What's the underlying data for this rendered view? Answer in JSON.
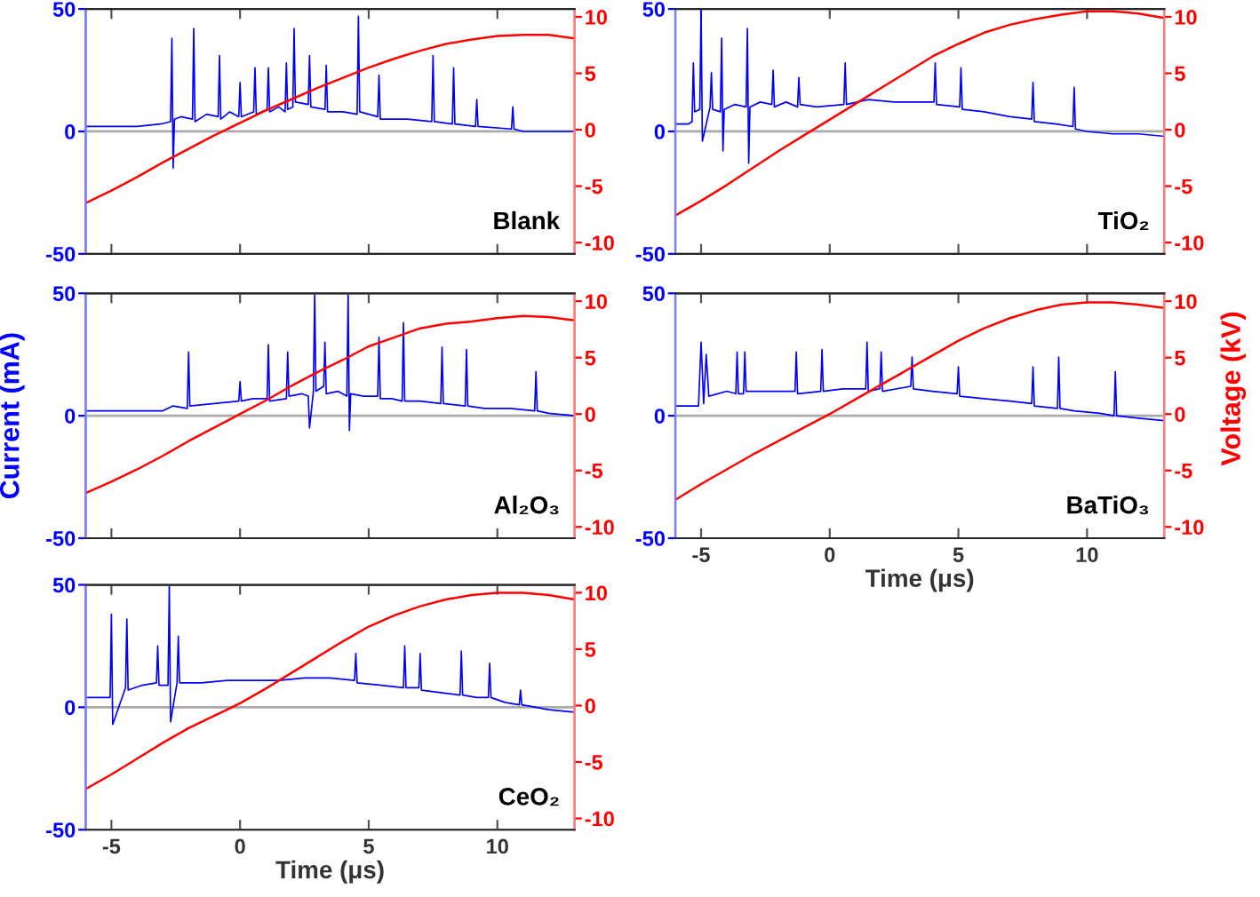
{
  "chart_data": [
    {
      "type": "line",
      "ylim": [
        -50,
        50
      ],
      "yticks": [
        -50,
        0,
        50
      ],
      "y2lim": [
        -11,
        10.7
      ],
      "y2ticks": [
        -10,
        -5,
        0,
        5,
        10
      ],
      "xlim": [
        -6,
        13
      ],
      "xticks": [
        -5,
        0,
        5,
        10
      ],
      "tick_labels": "y",
      "grid": false,
      "annotations": [
        "Blank"
      ],
      "ref_lines": [
        {
          "axis": "y",
          "value": 0,
          "color": "#aaaaaa"
        }
      ],
      "series": [
        {
          "color": "#0000ff",
          "x": [
            -6,
            -5,
            -4,
            -3.1,
            -2.7,
            -2.65,
            -2.6,
            -2.55,
            -2.3,
            -1.85,
            -1.8,
            -1.75,
            -1.3,
            -0.85,
            -0.8,
            -0.75,
            -0.4,
            -0.05,
            0,
            0.05,
            0.53,
            0.58,
            0.63,
            1.05,
            1.1,
            1.15,
            1.5,
            1.75,
            1.8,
            1.85,
            2.05,
            2.1,
            2.15,
            2.65,
            2.7,
            2.75,
            3.3,
            3.35,
            3.4,
            4,
            4.55,
            4.6,
            4.65,
            5.35,
            5.4,
            5.45,
            6.5,
            7.45,
            7.5,
            7.55,
            8.25,
            8.3,
            8.35,
            9.15,
            9.2,
            9.25,
            10.55,
            10.6,
            10.65,
            11,
            12,
            13
          ],
          "values": [
            2,
            2,
            2,
            3,
            4,
            38,
            -15,
            5,
            6,
            5,
            42,
            4,
            7,
            6,
            31,
            5,
            8,
            6,
            20,
            6,
            8,
            26,
            7,
            9,
            26,
            8,
            10,
            8,
            28,
            9,
            10,
            42,
            12,
            11,
            31,
            10,
            9,
            27,
            8,
            8,
            7,
            47,
            8,
            6,
            23,
            5,
            5,
            4,
            31,
            4,
            3,
            26,
            3,
            2,
            13,
            2,
            1,
            10,
            1,
            0,
            0,
            0
          ]
        },
        {
          "color": "#ff0000",
          "axis": "y2",
          "x": [
            -6,
            -5,
            -4,
            -3,
            -2,
            -1,
            0,
            1,
            2,
            3,
            4,
            5,
            6,
            7,
            8,
            9,
            10,
            11,
            12,
            13
          ],
          "values": [
            -6.5,
            -5.4,
            -4.2,
            -2.9,
            -1.7,
            -0.5,
            0.6,
            1.7,
            2.7,
            3.7,
            4.6,
            5.5,
            6.3,
            7.0,
            7.6,
            8.0,
            8.3,
            8.4,
            8.4,
            8.1
          ]
        }
      ]
    },
    {
      "type": "line",
      "ylim": [
        -50,
        50
      ],
      "yticks": [
        -50,
        0,
        50
      ],
      "y2lim": [
        -11,
        10.7
      ],
      "y2ticks": [
        -10,
        -5,
        0,
        5,
        10
      ],
      "xlim": [
        -6,
        13
      ],
      "xticks": [
        -5,
        0,
        5,
        10
      ],
      "tick_labels": "y",
      "grid": false,
      "annotations": [
        "TiO₂"
      ],
      "y2label": "Voltage (kV)",
      "ref_lines": [
        {
          "axis": "y",
          "value": 0,
          "color": "#aaaaaa"
        }
      ],
      "series": [
        {
          "color": "#0000ff",
          "x": [
            -6,
            -5.5,
            -5.35,
            -5.3,
            -5.25,
            -5.05,
            -5,
            -4.95,
            -4.65,
            -4.6,
            -4.55,
            -4.25,
            -4.2,
            -4.15,
            -4.1,
            -3.7,
            -3.25,
            -3.2,
            -3.15,
            -3.1,
            -2.7,
            -2.25,
            -2.2,
            -2.15,
            -1.7,
            -1.25,
            -1.2,
            -1.15,
            -0.5,
            0.55,
            0.6,
            0.65,
            1.5,
            2.5,
            3.5,
            4.05,
            4.1,
            4.15,
            5.05,
            5.1,
            5.15,
            6,
            7,
            7.85,
            7.9,
            7.95,
            8.8,
            9.45,
            9.5,
            9.55,
            10,
            11,
            12,
            13
          ],
          "values": [
            3,
            3,
            4,
            28,
            8,
            9,
            50,
            -4,
            10,
            24,
            9,
            8,
            38,
            -8,
            9,
            11,
            10,
            42,
            -13,
            10,
            12,
            11,
            25,
            10,
            12,
            10,
            22,
            11,
            10,
            11,
            28,
            11,
            13,
            12,
            12,
            12,
            28,
            11,
            10,
            26,
            9,
            8,
            6,
            5,
            20,
            4,
            3,
            2,
            18,
            1,
            0,
            -1,
            -1,
            -2
          ]
        },
        {
          "color": "#ff0000",
          "axis": "y2",
          "x": [
            -6,
            -5,
            -4,
            -3,
            -2,
            -1,
            0,
            1,
            2,
            3,
            4,
            5,
            6,
            7,
            8,
            9,
            10,
            11,
            12,
            13
          ],
          "values": [
            -7.6,
            -6.3,
            -4.9,
            -3.4,
            -1.9,
            -0.5,
            0.9,
            2.3,
            3.7,
            5.1,
            6.5,
            7.6,
            8.6,
            9.3,
            9.8,
            10.2,
            10.5,
            10.5,
            10.3,
            9.9
          ]
        }
      ]
    },
    {
      "type": "line",
      "ylim": [
        -50,
        50
      ],
      "yticks": [
        -50,
        0,
        50
      ],
      "y2lim": [
        -11,
        10.7
      ],
      "y2ticks": [
        -10,
        -5,
        0,
        5,
        10
      ],
      "xlim": [
        -6,
        13
      ],
      "xticks": [
        -5,
        0,
        5,
        10
      ],
      "tick_labels": "y",
      "grid": false,
      "annotations": [
        "Al₂O₃"
      ],
      "ylabel": "Current (mA)",
      "ref_lines": [
        {
          "axis": "y",
          "value": 0,
          "color": "#aaaaaa"
        }
      ],
      "series": [
        {
          "color": "#0000ff",
          "x": [
            -6,
            -4,
            -3,
            -2.6,
            -2.05,
            -2,
            -1.95,
            -1,
            -0.05,
            0,
            0.05,
            0.5,
            1.05,
            1.1,
            1.15,
            1.8,
            1.85,
            1.9,
            2.4,
            2.65,
            2.7,
            2.85,
            2.9,
            2.95,
            3.25,
            3.3,
            3.35,
            3.8,
            4.15,
            4.2,
            4.25,
            4.3,
            4.8,
            5.35,
            5.4,
            5.45,
            5.9,
            6.3,
            6.35,
            6.4,
            7,
            7.8,
            7.85,
            7.9,
            8.75,
            8.8,
            8.85,
            9.5,
            10.5,
            11.45,
            11.5,
            11.55,
            12,
            13
          ],
          "values": [
            2,
            2,
            2,
            4,
            3,
            26,
            4,
            5,
            6,
            14,
            6,
            7,
            7,
            29,
            6,
            7,
            26,
            8,
            9,
            8,
            -5,
            10,
            50,
            10,
            12,
            30,
            9,
            10,
            8,
            50,
            -6,
            9,
            8,
            8,
            32,
            7,
            7,
            6,
            38,
            6,
            6,
            5,
            28,
            5,
            4,
            27,
            4,
            3,
            3,
            2,
            18,
            2,
            1,
            0
          ]
        },
        {
          "color": "#ff0000",
          "axis": "y2",
          "x": [
            -6,
            -5,
            -4,
            -3,
            -2,
            -1,
            0,
            1,
            2,
            3,
            4,
            5,
            6,
            7,
            8,
            9,
            10,
            11,
            12,
            13
          ],
          "values": [
            -7.0,
            -6.0,
            -4.9,
            -3.7,
            -2.4,
            -1.2,
            0,
            1.2,
            2.5,
            3.7,
            4.8,
            6.0,
            6.8,
            7.6,
            8.0,
            8.2,
            8.5,
            8.7,
            8.6,
            8.3
          ]
        }
      ]
    },
    {
      "type": "line",
      "ylim": [
        -50,
        50
      ],
      "yticks": [
        -50,
        0,
        50
      ],
      "y2lim": [
        -11,
        10.7
      ],
      "y2ticks": [
        -10,
        -5,
        0,
        5,
        10
      ],
      "xlim": [
        -6,
        13
      ],
      "xticks": [
        -5,
        0,
        5,
        10
      ],
      "grid": false,
      "annotations": [
        "BaTiO₃"
      ],
      "xlabel": "Time (μs)",
      "ref_lines": [
        {
          "axis": "y",
          "value": 0,
          "color": "#aaaaaa"
        }
      ],
      "series": [
        {
          "color": "#0000ff",
          "x": [
            -6,
            -5.1,
            -5,
            -4.9,
            -4.8,
            -4.7,
            -4,
            -3.65,
            -3.6,
            -3.55,
            -3.35,
            -3.3,
            -3.25,
            -2.5,
            -1.35,
            -1.3,
            -1.25,
            -0.35,
            -0.3,
            -0.25,
            0.5,
            1.4,
            1.45,
            1.5,
            1.95,
            2,
            2.05,
            3.15,
            3.2,
            3.25,
            4,
            4.95,
            5,
            5.05,
            6,
            7,
            7.85,
            7.9,
            7.95,
            8.85,
            8.9,
            8.95,
            9.5,
            10.5,
            11.05,
            11.1,
            11.15,
            12,
            13
          ],
          "values": [
            4,
            4,
            30,
            5,
            25,
            8,
            10,
            9,
            26,
            9,
            9,
            26,
            10,
            10,
            10,
            26,
            9,
            10,
            27,
            10,
            11,
            11,
            30,
            10,
            11,
            26,
            10,
            12,
            24,
            11,
            10,
            9,
            20,
            8,
            7,
            6,
            5,
            20,
            4,
            3,
            24,
            3,
            2,
            1,
            0,
            18,
            0,
            -1,
            -2
          ]
        },
        {
          "color": "#ff0000",
          "axis": "y2",
          "x": [
            -6,
            -5,
            -4,
            -3,
            -2,
            -1,
            0,
            1,
            2,
            3,
            4,
            5,
            6,
            7,
            8,
            9,
            10,
            11,
            12,
            13
          ],
          "values": [
            -7.6,
            -6.2,
            -4.9,
            -3.6,
            -2.4,
            -1.2,
            0,
            1.3,
            2.6,
            3.9,
            5.2,
            6.5,
            7.6,
            8.5,
            9.2,
            9.7,
            9.9,
            9.9,
            9.7,
            9.4
          ]
        }
      ]
    },
    {
      "type": "line",
      "ylim": [
        -50,
        50
      ],
      "yticks": [
        -50,
        0,
        50
      ],
      "y2lim": [
        -11,
        10.7
      ],
      "y2ticks": [
        -10,
        -5,
        0,
        5,
        10
      ],
      "xlim": [
        -6,
        13
      ],
      "xticks": [
        -5,
        0,
        5,
        10
      ],
      "grid": false,
      "annotations": [
        "CeO₂"
      ],
      "xlabel": "Time (μs)",
      "ref_lines": [
        {
          "axis": "y",
          "value": 0,
          "color": "#aaaaaa"
        }
      ],
      "series": [
        {
          "color": "#0000ff",
          "x": [
            -6,
            -5.05,
            -5,
            -4.95,
            -4.45,
            -4.4,
            -4.35,
            -3.8,
            -3.25,
            -3.2,
            -3.15,
            -2.8,
            -2.75,
            -2.7,
            -2.45,
            -2.4,
            -2.35,
            -1.5,
            -0.5,
            0.5,
            1.5,
            2.5,
            3.5,
            4.45,
            4.5,
            4.55,
            5.5,
            6.35,
            6.4,
            6.45,
            6.95,
            7,
            7.05,
            7.8,
            8.55,
            8.6,
            8.65,
            9.2,
            9.65,
            9.7,
            9.75,
            10.3,
            10.85,
            10.9,
            10.95,
            11.5,
            12,
            13
          ],
          "values": [
            4,
            4,
            38,
            -7,
            8,
            36,
            7,
            9,
            10,
            25,
            9,
            9,
            50,
            -6,
            10,
            29,
            10,
            10,
            11,
            11,
            11,
            12,
            12,
            11,
            22,
            10,
            9,
            8,
            25,
            8,
            8,
            22,
            7,
            6,
            5,
            23,
            5,
            4,
            4,
            18,
            4,
            2,
            1,
            7,
            1,
            0,
            -1,
            -2
          ]
        },
        {
          "color": "#ff0000",
          "axis": "y2",
          "x": [
            -6,
            -5,
            -4,
            -3,
            -2,
            -1,
            0,
            1,
            2,
            3,
            4,
            5,
            6,
            7,
            8,
            9,
            10,
            11,
            12,
            13
          ],
          "values": [
            -7.4,
            -6.1,
            -4.7,
            -3.3,
            -2.0,
            -0.9,
            0.2,
            1.5,
            2.9,
            4.3,
            5.7,
            7.0,
            8.0,
            8.8,
            9.4,
            9.8,
            10.0,
            10.0,
            9.8,
            9.4
          ]
        }
      ]
    }
  ]
}
